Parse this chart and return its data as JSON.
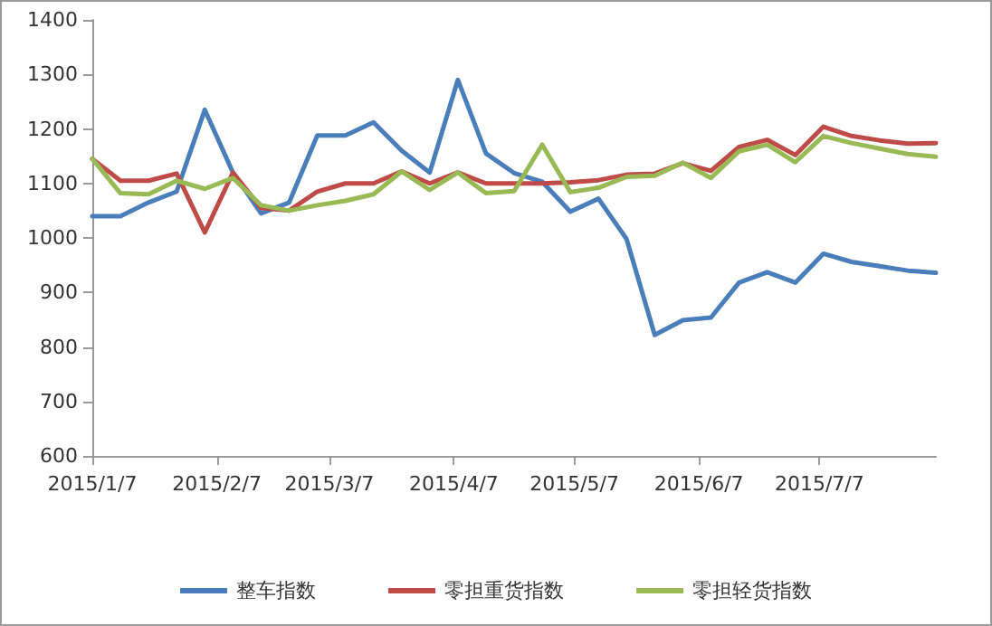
{
  "chart_data": {
    "type": "line",
    "x": [
      "2015-01-07",
      "2015-01-14",
      "2015-01-21",
      "2015-01-28",
      "2015-02-04",
      "2015-02-11",
      "2015-02-18",
      "2015-02-25",
      "2015-03-04",
      "2015-03-11",
      "2015-03-18",
      "2015-03-25",
      "2015-04-01",
      "2015-04-08",
      "2015-04-15",
      "2015-04-22",
      "2015-04-29",
      "2015-05-06",
      "2015-05-13",
      "2015-05-20",
      "2015-05-27",
      "2015-06-03",
      "2015-06-10",
      "2015-06-17",
      "2015-06-24",
      "2015-07-01",
      "2015-07-08",
      "2015-07-15",
      "2015-07-22",
      "2015-07-29",
      "2015-08-05"
    ],
    "series": [
      {
        "name": "整车指数",
        "color": "#4a7ebb",
        "values": [
          1040,
          1040,
          1065,
          1085,
          1235,
          1120,
          1045,
          1065,
          1188,
          1188,
          1212,
          1160,
          1120,
          1290,
          1155,
          1119,
          1103,
          1048,
          1072,
          998,
          822,
          849,
          854,
          918,
          937,
          918,
          971,
          956,
          948,
          940,
          936
        ]
      },
      {
        "name": "零担重货指数",
        "color": "#be4b48",
        "values": [
          1145,
          1105,
          1105,
          1118,
          1010,
          1120,
          1055,
          1050,
          1085,
          1100,
          1100,
          1122,
          1100,
          1120,
          1100,
          1100,
          1100,
          1102,
          1106,
          1116,
          1118,
          1137,
          1123,
          1167,
          1180,
          1152,
          1204,
          1187,
          1179,
          1173,
          1174
        ]
      },
      {
        "name": "零担轻货指数",
        "color": "#98b954",
        "values": [
          1145,
          1082,
          1080,
          1105,
          1090,
          1110,
          1060,
          1050,
          1060,
          1068,
          1080,
          1122,
          1088,
          1120,
          1082,
          1086,
          1171,
          1084,
          1092,
          1112,
          1114,
          1138,
          1110,
          1159,
          1171,
          1139,
          1187,
          1174,
          1164,
          1154,
          1149
        ]
      }
    ],
    "xlim": [
      "2015-01-07",
      "2015-08-05"
    ],
    "xticks": [
      {
        "value": "2015-01-07",
        "label": "2015/1/7"
      },
      {
        "value": "2015-02-07",
        "label": "2015/2/7"
      },
      {
        "value": "2015-03-07",
        "label": "2015/3/7"
      },
      {
        "value": "2015-04-07",
        "label": "2015/4/7"
      },
      {
        "value": "2015-05-07",
        "label": "2015/5/7"
      },
      {
        "value": "2015-06-07",
        "label": "2015/6/7"
      },
      {
        "value": "2015-07-07",
        "label": "2015/7/7"
      }
    ],
    "ylim": [
      600,
      1400
    ],
    "yticks": [
      600,
      700,
      800,
      900,
      1000,
      1100,
      1200,
      1300,
      1400
    ],
    "grid": false,
    "legend": "bottom",
    "marker": "none",
    "line_style": "solid"
  }
}
